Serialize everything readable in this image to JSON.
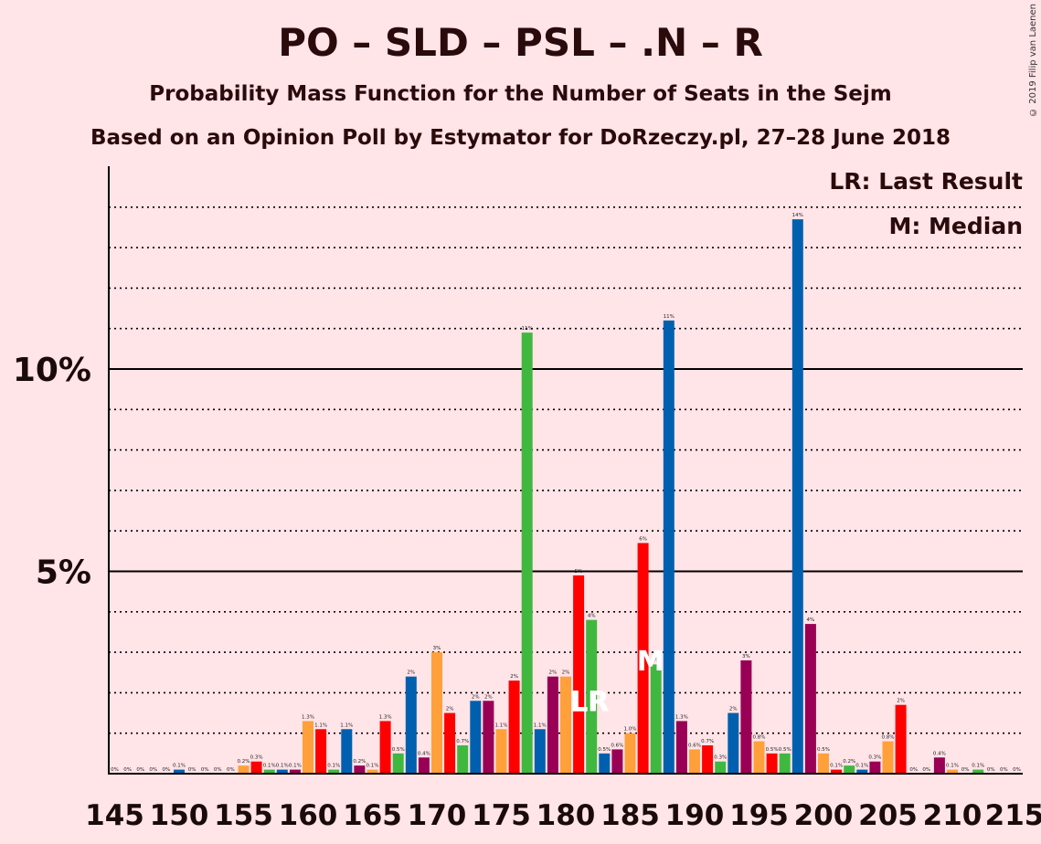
{
  "header": {
    "title": "PO – SLD – PSL – .N – R",
    "subtitle": "Probability Mass Function for the Number of Seats in the Sejm",
    "source": "Based on an Opinion Poll by Estymator for DoRzeczy.pl, 27–28 June 2018",
    "copyright": "© 2019 Filip van Laenen"
  },
  "legend": {
    "lr": "LR: Last Result",
    "m": "M: Median"
  },
  "chart_data": {
    "type": "bar",
    "title": "PO – SLD – PSL – .N – R",
    "xlabel": "",
    "ylabel": "",
    "xlim": [
      145,
      215
    ],
    "ylim": [
      0,
      15
    ],
    "xticks": [
      "145",
      "150",
      "155",
      "160",
      "165",
      "170",
      "175",
      "180",
      "185",
      "190",
      "195",
      "200",
      "205",
      "210",
      "215"
    ],
    "yticks": [
      {
        "value": 5,
        "label": "5%"
      },
      {
        "value": 10,
        "label": "10%"
      }
    ],
    "colors": {
      "blue": "#0060AF",
      "red": "#FF0000",
      "purple": "#990055",
      "orange": "#FFA03A",
      "green": "#40B840",
      "background": "#FFE4E8",
      "axis": "#000000"
    },
    "markers": {
      "last_result_seat": 182,
      "last_result_text": "LR",
      "median_seat": 187,
      "median_text": "M"
    },
    "bars": [
      {
        "seat": 145,
        "value": 0.0,
        "label": "0%",
        "color": "blue"
      },
      {
        "seat": 146,
        "value": 0.0,
        "label": "0%",
        "color": "red"
      },
      {
        "seat": 147,
        "value": 0.0,
        "label": "0%",
        "color": "purple"
      },
      {
        "seat": 148,
        "value": 0.0,
        "label": "0%",
        "color": "orange"
      },
      {
        "seat": 149,
        "value": 0.0,
        "label": "0%",
        "color": "green"
      },
      {
        "seat": 150,
        "value": 0.1,
        "label": "0.1%",
        "color": "blue"
      },
      {
        "seat": 151,
        "value": 0.0,
        "label": "0%",
        "color": "red"
      },
      {
        "seat": 152,
        "value": 0.0,
        "label": "0%",
        "color": "purple"
      },
      {
        "seat": 153,
        "value": 0.0,
        "label": "0%",
        "color": "orange"
      },
      {
        "seat": 154,
        "value": 0.0,
        "label": "0%",
        "color": "green"
      },
      {
        "seat": 155,
        "value": 0.2,
        "label": "0.2%",
        "color": "orange"
      },
      {
        "seat": 156,
        "value": 0.3,
        "label": "0.3%",
        "color": "red"
      },
      {
        "seat": 157,
        "value": 0.1,
        "label": "0.1%",
        "color": "green"
      },
      {
        "seat": 158,
        "value": 0.1,
        "label": "0.1%",
        "color": "blue"
      },
      {
        "seat": 159,
        "value": 0.1,
        "label": "0.1%",
        "color": "purple"
      },
      {
        "seat": 160,
        "value": 1.3,
        "label": "1.3%",
        "color": "orange"
      },
      {
        "seat": 161,
        "value": 1.1,
        "label": "1.1%",
        "color": "red"
      },
      {
        "seat": 162,
        "value": 0.1,
        "label": "0.1%",
        "color": "green"
      },
      {
        "seat": 163,
        "value": 1.1,
        "label": "1.1%",
        "color": "blue"
      },
      {
        "seat": 164,
        "value": 0.2,
        "label": "0.2%",
        "color": "purple"
      },
      {
        "seat": 165,
        "value": 0.1,
        "label": "0.1%",
        "color": "orange"
      },
      {
        "seat": 166,
        "value": 1.3,
        "label": "1.3%",
        "color": "red"
      },
      {
        "seat": 167,
        "value": 0.5,
        "label": "0.5%",
        "color": "green"
      },
      {
        "seat": 168,
        "value": 2.4,
        "label": "2%",
        "color": "blue"
      },
      {
        "seat": 169,
        "value": 0.4,
        "label": "0.4%",
        "color": "purple"
      },
      {
        "seat": 170,
        "value": 3.0,
        "label": "3%",
        "color": "orange"
      },
      {
        "seat": 171,
        "value": 1.5,
        "label": "2%",
        "color": "red"
      },
      {
        "seat": 172,
        "value": 0.7,
        "label": "0.7%",
        "color": "green"
      },
      {
        "seat": 173,
        "value": 1.8,
        "label": "2%",
        "color": "blue"
      },
      {
        "seat": 174,
        "value": 1.8,
        "label": "2%",
        "color": "purple"
      },
      {
        "seat": 175,
        "value": 1.1,
        "label": "1.1%",
        "color": "orange"
      },
      {
        "seat": 176,
        "value": 2.3,
        "label": "2%",
        "color": "red"
      },
      {
        "seat": 177,
        "value": 10.9,
        "label": "11%",
        "color": "green"
      },
      {
        "seat": 178,
        "value": 1.1,
        "label": "1.1%",
        "color": "blue"
      },
      {
        "seat": 179,
        "value": 2.4,
        "label": "2%",
        "color": "purple"
      },
      {
        "seat": 180,
        "value": 2.4,
        "label": "2%",
        "color": "orange"
      },
      {
        "seat": 181,
        "value": 4.9,
        "label": "5%",
        "color": "red"
      },
      {
        "seat": 182,
        "value": 3.8,
        "label": "4%",
        "color": "green"
      },
      {
        "seat": 183,
        "value": 0.5,
        "label": "0.5%",
        "color": "blue"
      },
      {
        "seat": 184,
        "value": 0.6,
        "label": "0.6%",
        "color": "purple"
      },
      {
        "seat": 185,
        "value": 1.0,
        "label": "1.0%",
        "color": "orange"
      },
      {
        "seat": 186,
        "value": 5.7,
        "label": "6%",
        "color": "red"
      },
      {
        "seat": 187,
        "value": 2.7,
        "label": "3%",
        "color": "green"
      },
      {
        "seat": 188,
        "value": 11.2,
        "label": "11%",
        "color": "blue"
      },
      {
        "seat": 189,
        "value": 1.3,
        "label": "1.3%",
        "color": "purple"
      },
      {
        "seat": 190,
        "value": 0.6,
        "label": "0.6%",
        "color": "orange"
      },
      {
        "seat": 191,
        "value": 0.7,
        "label": "0.7%",
        "color": "red"
      },
      {
        "seat": 192,
        "value": 0.3,
        "label": "0.3%",
        "color": "green"
      },
      {
        "seat": 193,
        "value": 1.5,
        "label": "2%",
        "color": "blue"
      },
      {
        "seat": 194,
        "value": 2.8,
        "label": "3%",
        "color": "purple"
      },
      {
        "seat": 195,
        "value": 0.8,
        "label": "0.8%",
        "color": "orange"
      },
      {
        "seat": 196,
        "value": 0.5,
        "label": "0.5%",
        "color": "red"
      },
      {
        "seat": 197,
        "value": 0.5,
        "label": "0.5%",
        "color": "green"
      },
      {
        "seat": 198,
        "value": 13.7,
        "label": "14%",
        "color": "blue"
      },
      {
        "seat": 199,
        "value": 3.7,
        "label": "4%",
        "color": "purple"
      },
      {
        "seat": 200,
        "value": 0.5,
        "label": "0.5%",
        "color": "orange"
      },
      {
        "seat": 201,
        "value": 0.1,
        "label": "0.1%",
        "color": "red"
      },
      {
        "seat": 202,
        "value": 0.2,
        "label": "0.2%",
        "color": "green"
      },
      {
        "seat": 203,
        "value": 0.1,
        "label": "0.1%",
        "color": "blue"
      },
      {
        "seat": 204,
        "value": 0.3,
        "label": "0.3%",
        "color": "purple"
      },
      {
        "seat": 205,
        "value": 0.8,
        "label": "0.8%",
        "color": "orange"
      },
      {
        "seat": 206,
        "value": 1.7,
        "label": "2%",
        "color": "red"
      },
      {
        "seat": 207,
        "value": 0.0,
        "label": "0%",
        "color": "green"
      },
      {
        "seat": 208,
        "value": 0.0,
        "label": "0%",
        "color": "blue"
      },
      {
        "seat": 209,
        "value": 0.4,
        "label": "0.4%",
        "color": "purple"
      },
      {
        "seat": 210,
        "value": 0.1,
        "label": "0.1%",
        "color": "orange"
      },
      {
        "seat": 211,
        "value": 0.0,
        "label": "0%",
        "color": "red"
      },
      {
        "seat": 212,
        "value": 0.1,
        "label": "0.1%",
        "color": "green"
      },
      {
        "seat": 213,
        "value": 0.0,
        "label": "0%",
        "color": "blue"
      },
      {
        "seat": 214,
        "value": 0.0,
        "label": "0%",
        "color": "purple"
      },
      {
        "seat": 215,
        "value": 0.0,
        "label": "0%",
        "color": "orange"
      }
    ]
  }
}
